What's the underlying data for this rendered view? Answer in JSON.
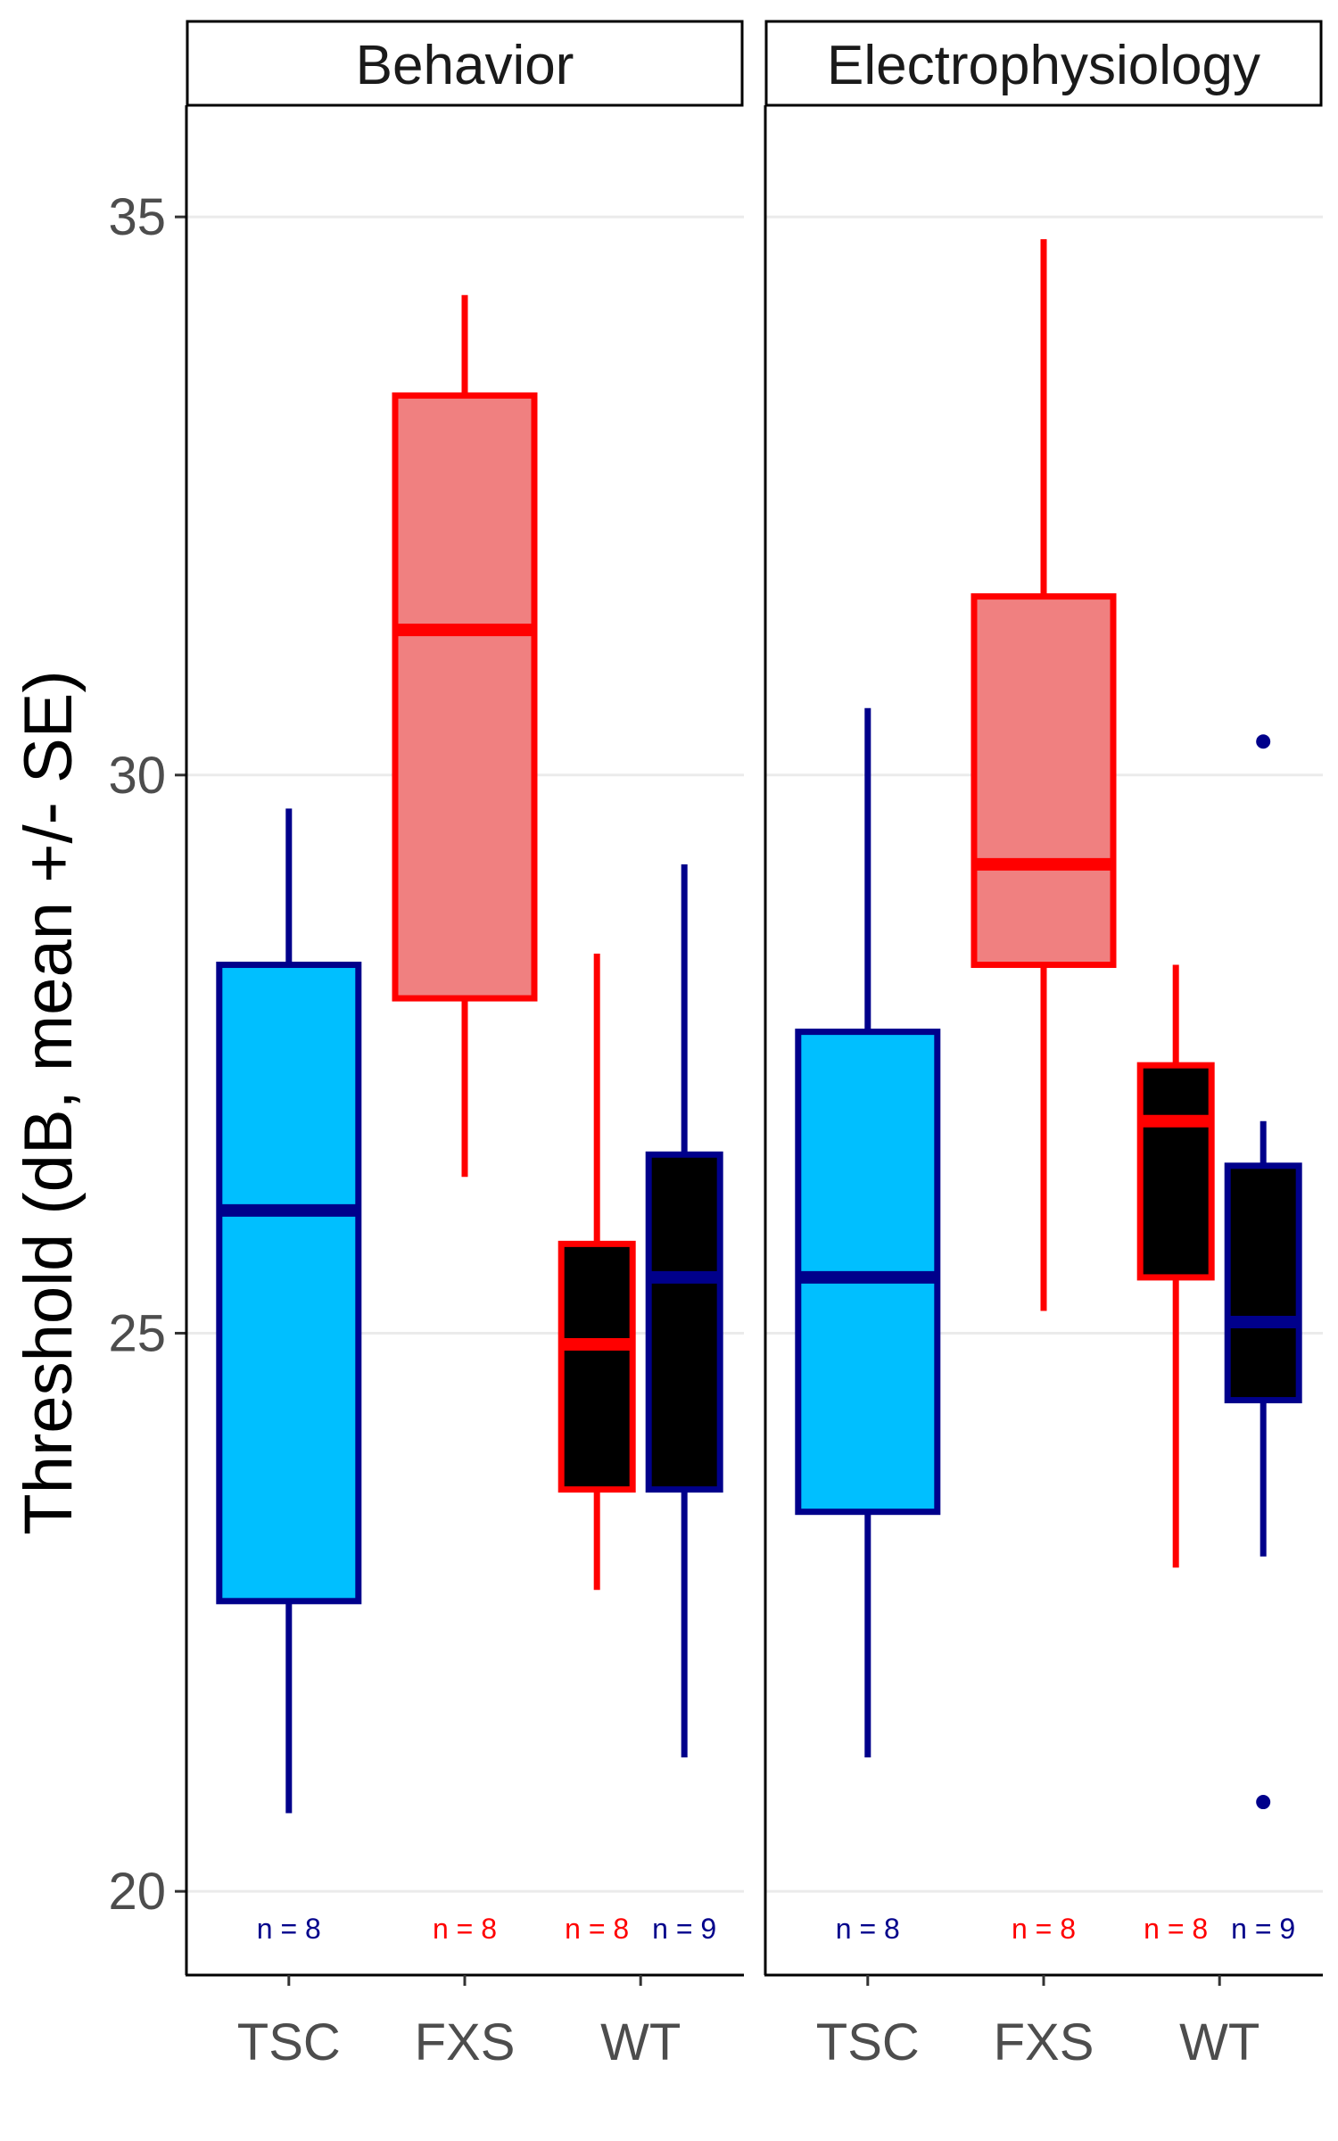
{
  "chart_data": {
    "type": "box",
    "ylabel": "Threshold (dB, mean +/- SE)",
    "xlabel": "",
    "ylim": [
      19.25,
      36
    ],
    "yticks": [
      20,
      25,
      30,
      35
    ],
    "grid": true,
    "categories": [
      "TSC",
      "FXS",
      "WT"
    ],
    "panels": [
      {
        "title": "Behavior",
        "boxes": [
          {
            "category": "TSC",
            "group": "TSC",
            "whisker_low": 20.7,
            "q1": 22.6,
            "median": 26.1,
            "q3": 28.3,
            "whisker_high": 29.7,
            "outliers": [],
            "n_label": "n = 8"
          },
          {
            "category": "FXS",
            "group": "FXS",
            "whisker_low": 26.4,
            "q1": 28.0,
            "median": 31.3,
            "q3": 33.4,
            "whisker_high": 34.3,
            "outliers": [],
            "n_label": "n = 8"
          },
          {
            "category": "WT",
            "group": "FXS",
            "whisker_low": 22.7,
            "q1": 23.6,
            "median": 24.9,
            "q3": 25.8,
            "whisker_high": 28.4,
            "outliers": [],
            "n_label": "n = 8"
          },
          {
            "category": "WT",
            "group": "TSC",
            "whisker_low": 21.2,
            "q1": 23.6,
            "median": 25.5,
            "q3": 26.6,
            "whisker_high": 29.2,
            "outliers": [],
            "n_label": "n = 9"
          }
        ]
      },
      {
        "title": "Electrophysiology",
        "boxes": [
          {
            "category": "TSC",
            "group": "TSC",
            "whisker_low": 21.2,
            "q1": 23.4,
            "median": 25.5,
            "q3": 27.7,
            "whisker_high": 30.6,
            "outliers": [],
            "n_label": "n = 8"
          },
          {
            "category": "FXS",
            "group": "FXS",
            "whisker_low": 25.2,
            "q1": 28.3,
            "median": 29.2,
            "q3": 31.6,
            "whisker_high": 34.8,
            "outliers": [],
            "n_label": "n = 8"
          },
          {
            "category": "WT",
            "group": "FXS",
            "whisker_low": 22.9,
            "q1": 25.5,
            "median": 26.9,
            "q3": 27.4,
            "whisker_high": 28.3,
            "outliers": [],
            "n_label": "n = 8"
          },
          {
            "category": "WT",
            "group": "TSC",
            "whisker_low": 23.0,
            "q1": 24.4,
            "median": 25.1,
            "q3": 26.5,
            "whisker_high": 26.9,
            "outliers": [
              30.3,
              20.8
            ],
            "n_label": "n = 9"
          }
        ]
      }
    ],
    "group_styles": {
      "TSC": {
        "color": "#00008B"
      },
      "FXS": {
        "color": "#FF0000"
      }
    },
    "fill_colors": {
      "TSC": "#00BFFF",
      "FXS": "#F08080",
      "WT": "#000000"
    }
  }
}
